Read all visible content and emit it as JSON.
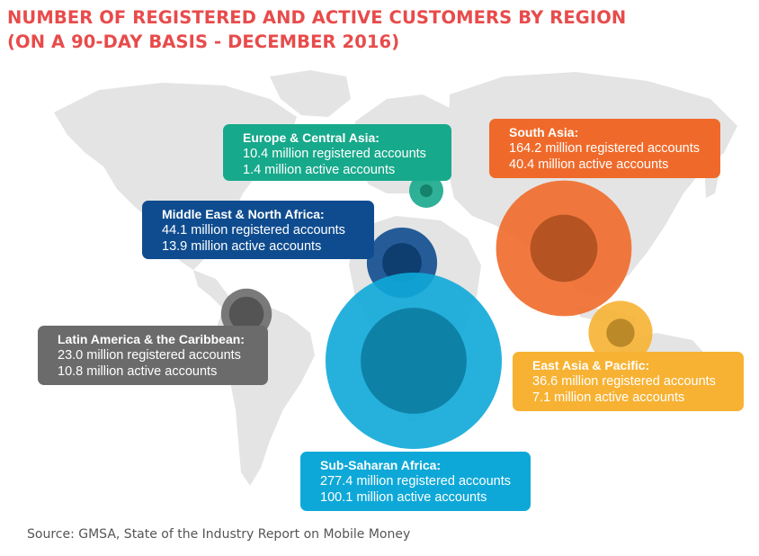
{
  "title": {
    "line1": "NUMBER OF REGISTERED AND ACTIVE CUSTOMERS BY REGION",
    "line2": "(ON A 90-DAY BASIS - DECEMBER 2016)"
  },
  "source": "Source: GMSA, State of the Industry Report on Mobile Money",
  "chart_data": {
    "type": "bubble",
    "unit": "million accounts",
    "regions": [
      {
        "name": "Europe & Central Asia:",
        "registered": 10.4,
        "active": 1.4,
        "registered_label": "10.4 million registered accounts",
        "active_label": "1.4 million active accounts",
        "color": "#17a98b"
      },
      {
        "name": "Middle East & North Africa:",
        "registered": 44.1,
        "active": 13.9,
        "registered_label": "44.1 million registered accounts",
        "active_label": "13.9 million active accounts",
        "color": "#0f4c8f"
      },
      {
        "name": "Latin America & the Caribbean:",
        "registered": 23.0,
        "active": 10.8,
        "registered_label": "23.0 million registered accounts",
        "active_label": "10.8 million active accounts",
        "color": "#6b6b6b"
      },
      {
        "name": "Sub-Saharan Africa:",
        "registered": 277.4,
        "active": 100.1,
        "registered_label": "277.4 million registered accounts",
        "active_label": "100.1 million active accounts",
        "color": "#0ea8d8"
      },
      {
        "name": "South Asia:",
        "registered": 164.2,
        "active": 40.4,
        "registered_label": "164.2 million registered accounts",
        "active_label": "40.4 million active accounts",
        "color": "#ef6a2a"
      },
      {
        "name": "East Asia & Pacific:",
        "registered": 36.6,
        "active": 7.1,
        "registered_label": "36.6 million registered accounts",
        "active_label": "7.1 million active accounts",
        "color": "#f7b233"
      }
    ]
  }
}
